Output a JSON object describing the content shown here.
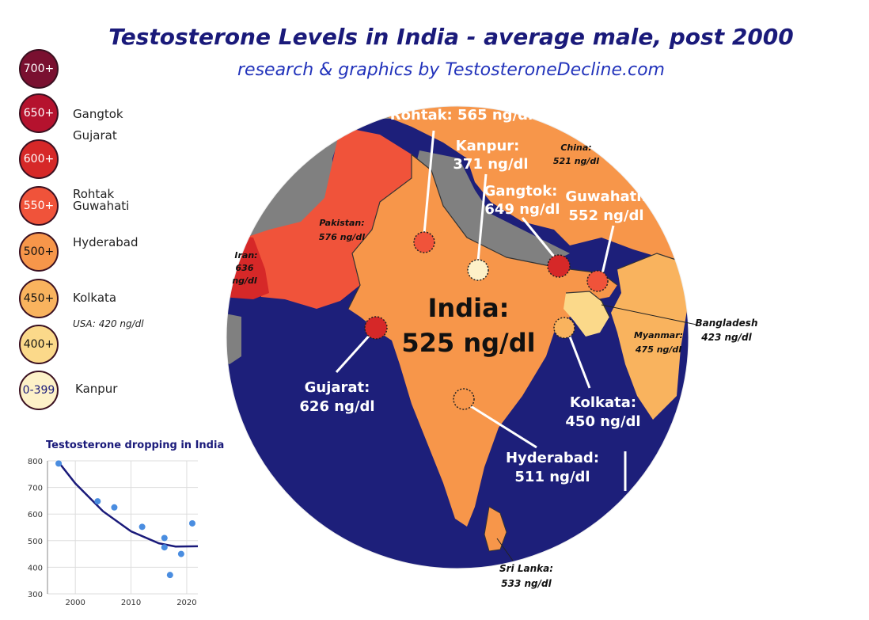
{
  "header": {
    "title": "Testosterone Levels in India - average male, post 2000",
    "subtitle": "research & graphics by TestosteroneDecline.com"
  },
  "legend": {
    "scale": [
      {
        "label": "700+",
        "color": "#7a1030",
        "text_color": "#ffffff"
      },
      {
        "label": "650+",
        "color": "#b5122e",
        "text_color": "#ffffff"
      },
      {
        "label": "600+",
        "color": "#d62828",
        "text_color": "#ffffff"
      },
      {
        "label": "550+",
        "color": "#f0533a",
        "text_color": "#ffffff"
      },
      {
        "label": "500+",
        "color": "#f7964a",
        "text_color": "#111111"
      },
      {
        "label": "450+",
        "color": "#f9b35e",
        "text_color": "#111111"
      },
      {
        "label": "400+",
        "color": "#fbd98a",
        "text_color": "#111111"
      },
      {
        "label": "0-399",
        "color": "#fdf1c8",
        "text_color": "#1a1a7a"
      }
    ],
    "entries": {
      "gangtok": "Gangtok",
      "gujarat": "Gujarat",
      "rohtak": "Rohtak",
      "guwahati": "Guwahati",
      "hyderabad": "Hyderabad",
      "kolkata": "Kolkata",
      "usa": "USA: 420 ng/dl",
      "kanpur": "Kanpur"
    }
  },
  "map": {
    "india": {
      "name": "India:",
      "value": "525 ng/dl"
    },
    "cities": {
      "rohtak": "Rohtak: 565 ng/dl",
      "kanpur_name": "Kanpur:",
      "kanpur_value": "371 ng/dl",
      "gangtok_name": "Gangtok:",
      "gangtok_value": "649 ng/dl",
      "guwahati_name": "Guwahati:",
      "guwahati_value": "552 ng/dl",
      "gujarat_name": "Gujarat:",
      "gujarat_value": "626 ng/dl",
      "kolkata_name": "Kolkata:",
      "kolkata_value": "450 ng/dl",
      "hyderabad_name": "Hyderabad:",
      "hyderabad_value": "511 ng/dl"
    },
    "countries": {
      "china_name": "China:",
      "china_value": "521 ng/dl",
      "pakistan_name": "Pakistan:",
      "pakistan_value": "576 ng/dl",
      "iran_name": "Iran:",
      "iran_value1": "636",
      "iran_value2": "ng/dl",
      "bangladesh_name": "Bangladesh",
      "bangladesh_value": "423 ng/dl",
      "myanmar_name": "Myanmar:",
      "myanmar_value": "475 ng/dl",
      "srilanka_name": "Sri Lanka:",
      "srilanka_value": "533 ng/dl"
    },
    "colors": {
      "ocean": "#1d1f7a",
      "land_gray": "#808080",
      "india": "#f7964a",
      "pakistan": "#f0533a",
      "iran": "#d62828"
    }
  },
  "chart_data": {
    "type": "scatter",
    "title": "Testosterone dropping in India",
    "xlim": [
      1995,
      2022
    ],
    "ylim": [
      300,
      800
    ],
    "xticks": [
      "2000",
      "2010",
      "2020"
    ],
    "xtick_values": [
      2000,
      2010,
      2020
    ],
    "yticks": [
      "300",
      "400",
      "500",
      "600",
      "700",
      "800"
    ],
    "ytick_values": [
      300,
      400,
      500,
      600,
      700,
      800
    ],
    "points": [
      {
        "x": 1997,
        "y": 790
      },
      {
        "x": 2004,
        "y": 648
      },
      {
        "x": 2007,
        "y": 625
      },
      {
        "x": 2012,
        "y": 552
      },
      {
        "x": 2016,
        "y": 510
      },
      {
        "x": 2016,
        "y": 475
      },
      {
        "x": 2017,
        "y": 371
      },
      {
        "x": 2019,
        "y": 450
      },
      {
        "x": 2021,
        "y": 565
      }
    ],
    "trend": [
      {
        "x": 1997,
        "y": 795
      },
      {
        "x": 2000,
        "y": 715
      },
      {
        "x": 2005,
        "y": 610
      },
      {
        "x": 2010,
        "y": 535
      },
      {
        "x": 2015,
        "y": 490
      },
      {
        "x": 2018,
        "y": 478
      },
      {
        "x": 2022,
        "y": 479
      }
    ],
    "point_color": "#4a8de0",
    "trend_color": "#1a1a7a"
  }
}
